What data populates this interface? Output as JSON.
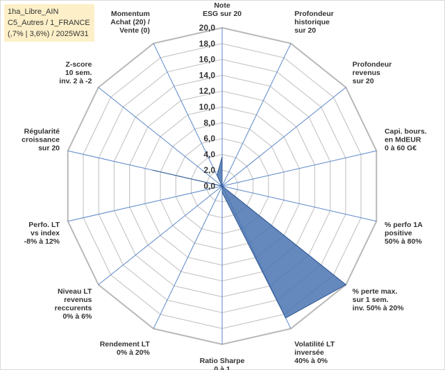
{
  "info_box": {
    "line1": "1ha_Libre_AIN",
    "line2": "C5_Autres / 1_FRANCE",
    "line3": "(,7% | 3,6%) / 2025W31"
  },
  "chart_data": {
    "type": "radar",
    "rmax": 20,
    "tick_step": 2,
    "tick_labels": [
      "0,0",
      "2,0",
      "4,0",
      "6,0",
      "8,0",
      "10,0",
      "12,0",
      "14,0",
      "16,0",
      "18,0",
      "20,0"
    ],
    "axes": [
      {
        "label": [
          "Note",
          "ESG sur 20"
        ],
        "value": 3.7
      },
      {
        "label": [
          "Profondeur",
          "historique",
          "sur 20"
        ],
        "value": 0
      },
      {
        "label": [
          "Profondeur",
          "revenus",
          "sur 20"
        ],
        "value": 0
      },
      {
        "label": [
          "Capi. bours.",
          "en MdEUR",
          "0 à 60 G€"
        ],
        "value": 0
      },
      {
        "label": [
          "% perfo 1A",
          "positive",
          "50% à 80%"
        ],
        "value": 0
      },
      {
        "label": [
          "% perte max.",
          "sur 1 sem.",
          "inv. 50% à 20%"
        ],
        "value": 20
      },
      {
        "label": [
          "Volatilité LT",
          "inversée",
          "40% à 0%"
        ],
        "value": 18.5
      },
      {
        "label": [
          "Ratio Sharpe",
          "0 à 1"
        ],
        "value": 0.8
      },
      {
        "label": [
          "Rendement LT",
          "0% à 20%"
        ],
        "value": 0
      },
      {
        "label": [
          "Niveau LT",
          "revenus",
          "reccurents",
          "0% à 6%"
        ],
        "value": 0
      },
      {
        "label": [
          "Perfo. LT",
          "vs index",
          "-8% à 12%"
        ],
        "value": 0
      },
      {
        "label": [
          "Régularité",
          "croissance",
          "sur 20"
        ],
        "value": 9
      },
      {
        "label": [
          "Z-score",
          "10 sem.",
          "inv. 2 à -2"
        ],
        "value": 0
      },
      {
        "label": [
          "Momentum",
          "Achat (20) /",
          "Vente (0)"
        ],
        "value": 1.5
      }
    ],
    "series": [
      {
        "values": [
          3.7,
          0,
          0,
          0,
          0,
          20,
          18.5,
          0.8,
          0,
          0,
          0,
          9,
          0,
          1.5
        ]
      }
    ],
    "colors": {
      "fill": "#4a74b0",
      "line": "#2f5590",
      "spoke": "#5a86c8",
      "grid": "#c8c8c8"
    }
  }
}
